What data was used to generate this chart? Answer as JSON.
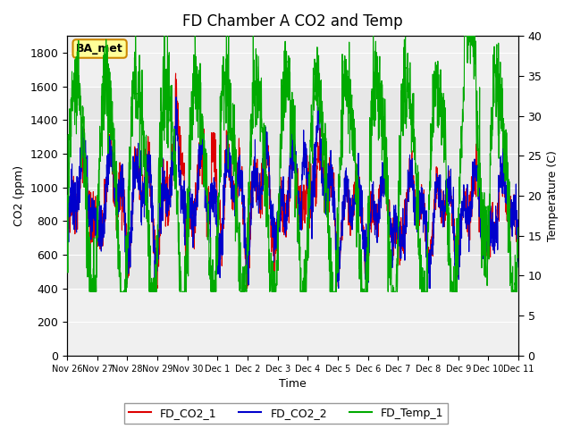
{
  "title": "FD Chamber A CO2 and Temp",
  "xlabel": "Time",
  "ylabel_left": "CO2 (ppm)",
  "ylabel_right": "Temperature (C)",
  "co2_ylim": [
    0,
    1900
  ],
  "temp_ylim": [
    0,
    40
  ],
  "co2_yticks": [
    0,
    200,
    400,
    600,
    800,
    1000,
    1200,
    1400,
    1600,
    1800
  ],
  "temp_yticks": [
    0,
    5,
    10,
    15,
    20,
    25,
    30,
    35,
    40
  ],
  "bg_color": "#ffffff",
  "plot_bg_color": "#f0f0f0",
  "band1_color": "#e8e8e8",
  "band2_color": "#d8d8d8",
  "co2_1_color": "#dd0000",
  "co2_2_color": "#0000cc",
  "temp_color": "#00aa00",
  "legend_label_1": "FD_CO2_1",
  "legend_label_2": "FD_CO2_2",
  "legend_label_3": "FD_Temp_1",
  "annotation_text": "BA_met",
  "annotation_bg": "#ffff99",
  "annotation_border": "#cc8800",
  "font_size": 9,
  "title_font_size": 12
}
